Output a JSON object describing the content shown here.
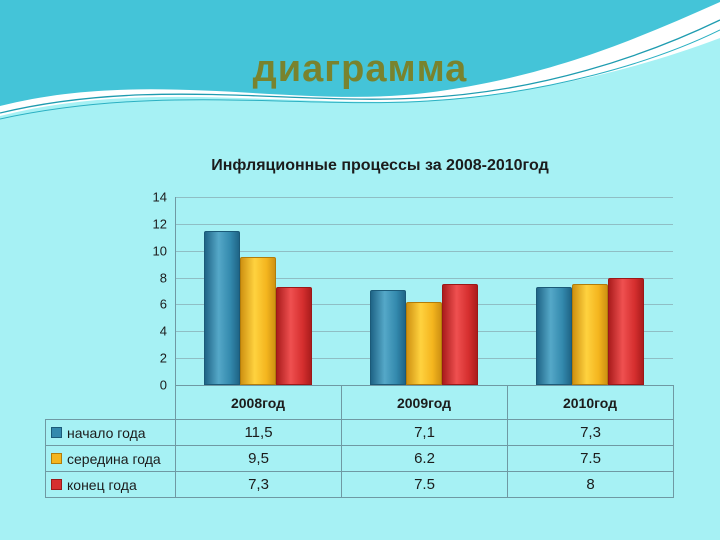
{
  "slide": {
    "title": "диаграмма",
    "background_color": "#a6f1f4",
    "band_color": "#44c4d8",
    "title_color": "#79832e"
  },
  "chart_data": {
    "type": "bar",
    "title": "Инфляционные процессы за 2008-2010год",
    "categories": [
      "2008год",
      "2009год",
      "2010год"
    ],
    "series": [
      {
        "name": "начало года",
        "values": [
          11.5,
          7.1,
          7.3
        ],
        "color": "#3389ad",
        "light": "#55a8c8",
        "dark": "#1f6587",
        "border": "#1b5a78"
      },
      {
        "name": "середина года",
        "values": [
          9.5,
          6.2,
          7.5
        ],
        "color": "#f4b51e",
        "light": "#ffd23f",
        "dark": "#cf9212",
        "border": "#b27c0a"
      },
      {
        "name": "конец года",
        "values": [
          7.3,
          7.5,
          8
        ],
        "color": "#d62f2f",
        "light": "#ef5050",
        "dark": "#ab1d1d",
        "border": "#9c1818"
      }
    ],
    "y_ticks": [
      0,
      2,
      4,
      6,
      8,
      10,
      12,
      14
    ],
    "ylim": [
      0,
      14
    ],
    "grid": true,
    "legend_position": "data-table-left",
    "data_table": {
      "rows": [
        {
          "label": "начало года",
          "values": [
            "11,5",
            "7,1",
            "7,3"
          ]
        },
        {
          "label": "середина года",
          "values": [
            "9,5",
            "6.2",
            "7.5"
          ]
        },
        {
          "label": "конец года",
          "values": [
            "7,3",
            "7.5",
            "8"
          ]
        }
      ]
    }
  }
}
